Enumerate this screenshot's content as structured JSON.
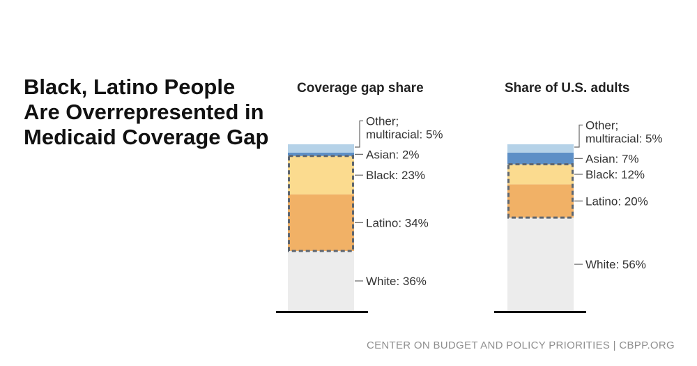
{
  "headline": "Black, Latino People Are Overrepresented in Medicaid Coverage Gap",
  "footer": "CENTER ON BUDGET AND POLICY PRIORITIES | CBPP.ORG",
  "colors": {
    "White": "#ececec",
    "Latino": "#f1b166",
    "Black": "#fbdb8f",
    "Asian": "#5d8fc6",
    "Other; multiracial": "#b5d2e8",
    "outline": "#5e6670",
    "baseline": "#111111"
  },
  "chart_data": [
    {
      "type": "bar",
      "stacked": true,
      "title": "Coverage gap share",
      "categories": [
        "White",
        "Latino",
        "Black",
        "Asian",
        "Other; multiracial"
      ],
      "values": [
        36,
        34,
        23,
        2,
        5
      ],
      "labels": [
        "White: 36%",
        "Latino: 34%",
        "Black: 23%",
        "Asian: 2%",
        [
          "Other;",
          "multiracial: 5%"
        ]
      ],
      "highlight": [
        "Latino",
        "Black"
      ],
      "ylim": [
        0,
        100
      ]
    },
    {
      "type": "bar",
      "stacked": true,
      "title": "Share of U.S. adults",
      "categories": [
        "White",
        "Latino",
        "Black",
        "Asian",
        "Other; multiracial"
      ],
      "values": [
        56,
        20,
        12,
        7,
        5
      ],
      "labels": [
        "White: 56%",
        "Latino: 20%",
        "Black: 12%",
        "Asian: 7%",
        [
          "Other;",
          "multiracial: 5%"
        ]
      ],
      "highlight": [
        "Latino",
        "Black"
      ],
      "ylim": [
        0,
        100
      ]
    }
  ]
}
